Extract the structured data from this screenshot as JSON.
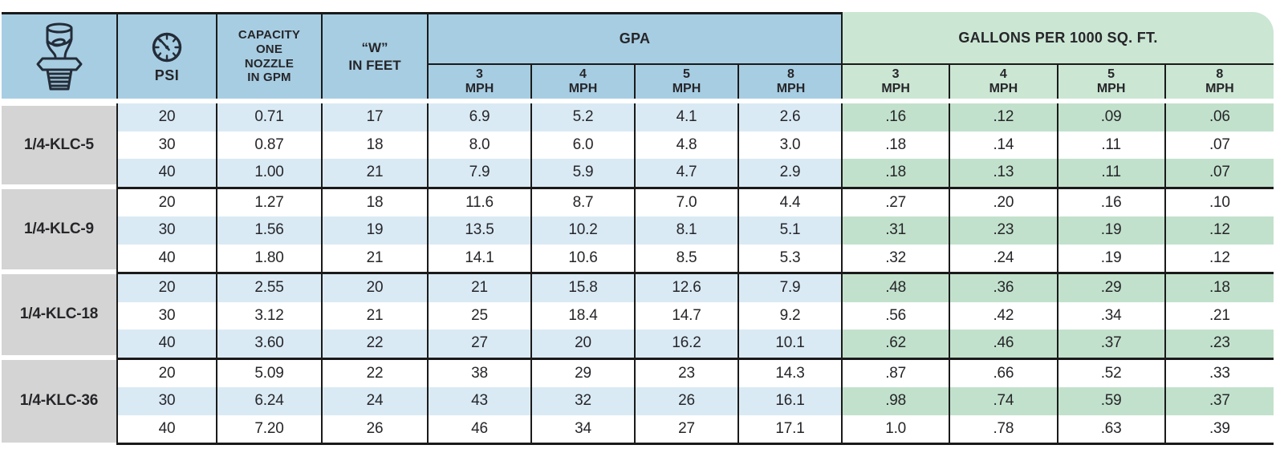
{
  "table": {
    "header": {
      "psi_label": "PSI",
      "capacity_lines": [
        "CAPACITY",
        "ONE",
        "NOZZLE",
        "IN GPM"
      ],
      "w_lines": [
        "“W”",
        "IN FEET"
      ],
      "gpa_label": "GPA",
      "gallons_label": "GALLONS PER 1000 SQ. FT.",
      "speeds": [
        "3",
        "4",
        "5",
        "8"
      ],
      "mph_label": "MPH"
    },
    "groups": [
      {
        "name": "1/4-KLC-5",
        "rows": [
          {
            "psi": "20",
            "gpm": "0.71",
            "w": "17",
            "gpa": [
              "6.9",
              "5.2",
              "4.1",
              "2.6"
            ],
            "g1000": [
              ".16",
              ".12",
              ".09",
              ".06"
            ]
          },
          {
            "psi": "30",
            "gpm": "0.87",
            "w": "18",
            "gpa": [
              "8.0",
              "6.0",
              "4.8",
              "3.0"
            ],
            "g1000": [
              ".18",
              ".14",
              ".11",
              ".07"
            ]
          },
          {
            "psi": "40",
            "gpm": "1.00",
            "w": "21",
            "gpa": [
              "7.9",
              "5.9",
              "4.7",
              "2.9"
            ],
            "g1000": [
              ".18",
              ".13",
              ".11",
              ".07"
            ]
          }
        ]
      },
      {
        "name": "1/4-KLC-9",
        "rows": [
          {
            "psi": "20",
            "gpm": "1.27",
            "w": "18",
            "gpa": [
              "11.6",
              "8.7",
              "7.0",
              "4.4"
            ],
            "g1000": [
              ".27",
              ".20",
              ".16",
              ".10"
            ]
          },
          {
            "psi": "30",
            "gpm": "1.56",
            "w": "19",
            "gpa": [
              "13.5",
              "10.2",
              "8.1",
              "5.1"
            ],
            "g1000": [
              ".31",
              ".23",
              ".19",
              ".12"
            ]
          },
          {
            "psi": "40",
            "gpm": "1.80",
            "w": "21",
            "gpa": [
              "14.1",
              "10.6",
              "8.5",
              "5.3"
            ],
            "g1000": [
              ".32",
              ".24",
              ".19",
              ".12"
            ]
          }
        ]
      },
      {
        "name": "1/4-KLC-18",
        "rows": [
          {
            "psi": "20",
            "gpm": "2.55",
            "w": "20",
            "gpa": [
              "21",
              "15.8",
              "12.6",
              "7.9"
            ],
            "g1000": [
              ".48",
              ".36",
              ".29",
              ".18"
            ]
          },
          {
            "psi": "30",
            "gpm": "3.12",
            "w": "21",
            "gpa": [
              "25",
              "18.4",
              "14.7",
              "9.2"
            ],
            "g1000": [
              ".56",
              ".42",
              ".34",
              ".21"
            ]
          },
          {
            "psi": "40",
            "gpm": "3.60",
            "w": "22",
            "gpa": [
              "27",
              "20",
              "16.2",
              "10.1"
            ],
            "g1000": [
              ".62",
              ".46",
              ".37",
              ".23"
            ]
          }
        ]
      },
      {
        "name": "1/4-KLC-36",
        "rows": [
          {
            "psi": "20",
            "gpm": "5.09",
            "w": "22",
            "gpa": [
              "38",
              "29",
              "23",
              "14.3"
            ],
            "g1000": [
              ".87",
              ".66",
              ".52",
              ".33"
            ]
          },
          {
            "psi": "30",
            "gpm": "6.24",
            "w": "24",
            "gpa": [
              "43",
              "32",
              "26",
              "16.1"
            ],
            "g1000": [
              ".98",
              ".74",
              ".59",
              ".37"
            ]
          },
          {
            "psi": "40",
            "gpm": "7.20",
            "w": "26",
            "gpa": [
              "46",
              "34",
              "27",
              "17.1"
            ],
            "g1000": [
              "1.0",
              ".78",
              ".63",
              ".39"
            ]
          }
        ]
      }
    ]
  },
  "icons": {
    "nozzle": "klc-nozzle-icon",
    "gauge": "pressure-gauge-icon"
  },
  "colors": {
    "header_blue": "#a7cde2",
    "header_green": "#cbe6d3",
    "stripe_blue": "#daeaf4",
    "stripe_green": "#c2e1cc",
    "label_gray": "#d4d4d4",
    "line_black": "#1a1a1a",
    "text": "#26262a"
  }
}
